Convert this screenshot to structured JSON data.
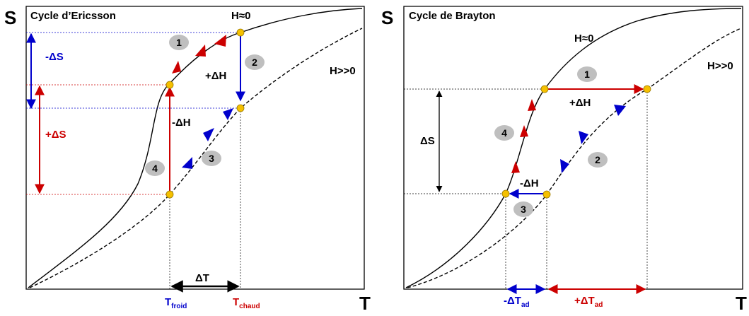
{
  "left_panel": {
    "title": "Cycle d’Ericsson",
    "s_axis": "S",
    "t_axis": "T",
    "label_h0": "H≈0",
    "label_hpos": "H>>0",
    "minus_ds": "-ΔS",
    "plus_ds": "+ΔS",
    "plus_dh": "+ΔH",
    "minus_dh": "-ΔH",
    "delta_t": "ΔT",
    "t_froid_main": "T",
    "t_froid_sub": "froid",
    "t_chaud_main": "T",
    "t_chaud_sub": "chaud",
    "steps": [
      "1",
      "2",
      "3",
      "4"
    ]
  },
  "right_panel": {
    "title": "Cycle de Brayton",
    "s_axis": "S",
    "t_axis": "T",
    "label_h0": "H≈0",
    "label_hpos": "H>>0",
    "delta_s": "ΔS",
    "plus_dh": "+ΔH",
    "minus_dh": "-ΔH",
    "minus_dt_main": "-ΔT",
    "minus_dt_sub": "ad",
    "plus_dt_main": "+ΔT",
    "plus_dt_sub": "ad",
    "steps": [
      "1",
      "2",
      "3",
      "4"
    ]
  },
  "colors": {
    "red": "#cc0000",
    "blue": "#0000cc",
    "point": "#f5c000",
    "badge": "#bfbfbf"
  }
}
